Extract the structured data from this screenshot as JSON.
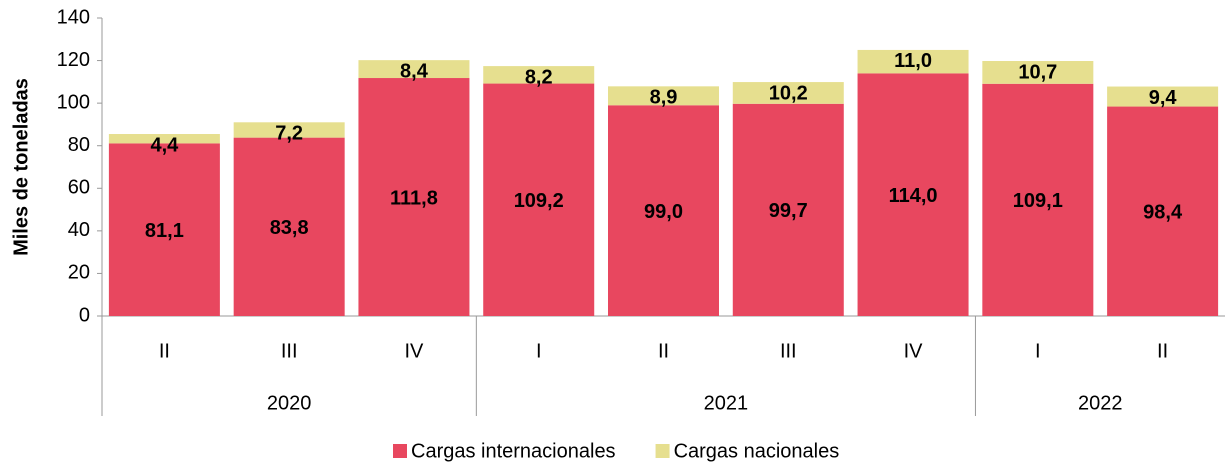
{
  "chart_data": {
    "type": "stacked_bar",
    "ylabel": "Miles de toneladas",
    "groups": [
      {
        "label": "2020",
        "categories": [
          "II",
          "III",
          "IV"
        ]
      },
      {
        "label": "2021",
        "categories": [
          "I",
          "II",
          "III",
          "IV"
        ]
      },
      {
        "label": "2022",
        "categories": [
          "I",
          "II"
        ]
      }
    ],
    "series": [
      {
        "name": "Cargas internacionales",
        "color": "#e8475f",
        "values": [
          81.1,
          83.8,
          111.8,
          109.2,
          99.0,
          99.7,
          114.0,
          109.1,
          98.4
        ],
        "value_labels": [
          "81,1",
          "83,8",
          "111,8",
          "109,2",
          "99,0",
          "99,7",
          "114,0",
          "109,1",
          "98,4"
        ]
      },
      {
        "name": "Cargas nacionales",
        "color": "#e6df8f",
        "values": [
          4.4,
          7.2,
          8.4,
          8.2,
          8.9,
          10.2,
          11.0,
          10.7,
          9.4
        ],
        "value_labels": [
          "4,4",
          "7,2",
          "8,4",
          "8,2",
          "8,9",
          "10,2",
          "11,0",
          "10,7",
          "9,4"
        ]
      }
    ],
    "ylim": [
      0,
      140
    ],
    "yticks": [
      0,
      20,
      40,
      60,
      80,
      100,
      120,
      140
    ]
  }
}
